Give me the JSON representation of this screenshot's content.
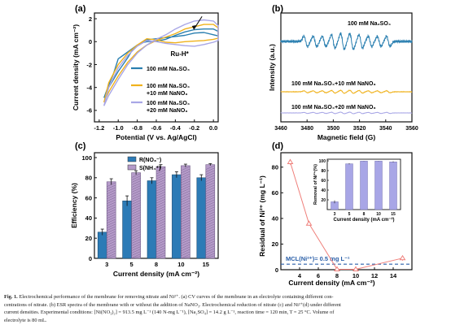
{
  "panels": {
    "a": {
      "letter": "(a)"
    },
    "b": {
      "letter": "(b)"
    },
    "c": {
      "letter": "(c)"
    },
    "d": {
      "letter": "(d)"
    }
  },
  "chart_data": [
    {
      "id": "a",
      "type": "line",
      "xlabel": "Potential (V vs. Ag/AgCl)",
      "ylabel": "Current density (mA cm⁻²)",
      "xlim": [
        -1.25,
        0.05
      ],
      "ylim": [
        -7,
        2.5
      ],
      "xticks": [
        -1.2,
        -1.0,
        -0.8,
        -0.6,
        -0.4,
        -0.2,
        0.0
      ],
      "xtick_labels": [
        "-1.2",
        "-1.0",
        "-0.8",
        "-0.6",
        "-0.4",
        "-0.2",
        "0.0"
      ],
      "yticks": [
        -6,
        -4,
        -2,
        0,
        2
      ],
      "ytick_labels": [
        "-6",
        "-4",
        "-2",
        "0",
        "2"
      ],
      "annotation": "Ru-H*",
      "legend": [
        {
          "label_lines": [
            "100 mM Na₂SO₄"
          ],
          "color": "#2a7fb0"
        },
        {
          "label_lines": [
            "100 mM Na₂SO₄",
            "+10 mM NaNO₃"
          ],
          "color": "#f0b21c"
        },
        {
          "label_lines": [
            "100 mM Na₂SO₄",
            "+20 mM NaNO₃"
          ],
          "color": "#a8a6e6"
        }
      ],
      "series": [
        {
          "name": "100 mM Na₂SO₄",
          "color": "#2a7fb0",
          "x": [
            -1.15,
            -1.1,
            -1.05,
            -1.0,
            -0.95,
            -0.9,
            -0.85,
            -0.8,
            -0.75,
            -0.7,
            -0.6,
            -0.5,
            -0.4,
            -0.3,
            -0.2,
            -0.1,
            0.0,
            0.05,
            0.05,
            0.0,
            -0.1,
            -0.2,
            -0.3,
            -0.4,
            -0.5,
            -0.6,
            -0.7,
            -0.8,
            -0.9,
            -1.0,
            -1.05,
            -1.1,
            -1.15
          ],
          "y": [
            -4.9,
            -4.0,
            -3.3,
            -2.6,
            -2.0,
            -1.4,
            -0.7,
            -0.3,
            -0.1,
            0.0,
            0.05,
            0.2,
            0.55,
            0.85,
            1.05,
            1.1,
            1.1,
            0.9,
            0.5,
            0.6,
            0.8,
            0.75,
            0.55,
            0.45,
            0.35,
            0.25,
            0.15,
            -0.3,
            -0.9,
            -1.5,
            -2.8,
            -3.8,
            -4.9
          ]
        },
        {
          "name": "100 mM Na₂SO₄ +10 mM NaNO₃",
          "color": "#f0b21c",
          "x": [
            -1.15,
            -1.1,
            -1.0,
            -0.9,
            -0.8,
            -0.7,
            -0.6,
            -0.5,
            -0.4,
            -0.3,
            -0.2,
            -0.1,
            0.0,
            0.05,
            0.05,
            0.0,
            -0.1,
            -0.2,
            -0.3,
            -0.4,
            -0.5,
            -0.6,
            -0.7,
            -0.8,
            -0.9,
            -1.0,
            -1.1,
            -1.15
          ],
          "y": [
            -5.3,
            -4.4,
            -3.0,
            -1.8,
            -0.9,
            -0.3,
            0.1,
            0.4,
            0.7,
            1.1,
            1.3,
            1.5,
            1.5,
            1.2,
            0.3,
            0.2,
            0.1,
            0.05,
            0.0,
            -0.1,
            -0.05,
            0.15,
            0.25,
            -0.3,
            -1.0,
            -2.0,
            -3.6,
            -5.3
          ]
        },
        {
          "name": "100 mM Na₂SO₄ +20 mM NaNO₃",
          "color": "#a8a6e6",
          "x": [
            -1.15,
            -1.1,
            -1.0,
            -0.9,
            -0.8,
            -0.7,
            -0.6,
            -0.5,
            -0.4,
            -0.3,
            -0.2,
            -0.1,
            0.0,
            0.05,
            0.05,
            0.0,
            -0.1,
            -0.2,
            -0.3,
            -0.4,
            -0.5,
            -0.6,
            -0.7,
            -0.8,
            -0.9,
            -1.0,
            -1.1,
            -1.15
          ],
          "y": [
            -5.6,
            -4.7,
            -3.3,
            -2.0,
            -1.0,
            -0.3,
            0.2,
            0.6,
            1.1,
            1.5,
            1.8,
            1.9,
            1.8,
            1.4,
            0.1,
            -0.05,
            -0.25,
            -0.4,
            -0.35,
            -0.25,
            -0.15,
            0.0,
            0.1,
            -0.4,
            -1.2,
            -2.3,
            -4.0,
            -5.6
          ]
        }
      ]
    },
    {
      "id": "b",
      "type": "line",
      "xlabel": "Magnetic field (G)",
      "ylabel": "Intensity (a.u.)",
      "xlim": [
        3460,
        3560
      ],
      "xticks": [
        3460,
        3480,
        3500,
        3520,
        3540,
        3560
      ],
      "xtick_labels": [
        "3460",
        "3480",
        "3500",
        "3520",
        "3540",
        "3560"
      ],
      "series": [
        {
          "name": "100 mM Na₂SO₄",
          "color": "#2a7fb0",
          "peak_centers": [
            3479,
            3486,
            3493,
            3500,
            3507,
            3514,
            3521,
            3528,
            3535,
            3542
          ],
          "amplitude": 1.0
        },
        {
          "name": "100 mM Na₂SO₄+10 mM NaNO₃",
          "color": "#f0b21c",
          "peak_centers": [
            3479,
            3486,
            3493,
            3500,
            3507,
            3514,
            3521,
            3528,
            3535,
            3542
          ],
          "amplitude": 0.18
        },
        {
          "name": "100 mM Na₂SO₄+20 mM NaNO₃",
          "color": "#a8a6e6",
          "peak_centers": [
            3479,
            3486,
            3493,
            3500,
            3507,
            3514,
            3521,
            3528,
            3535,
            3542
          ],
          "amplitude": 0.08
        }
      ]
    },
    {
      "id": "c",
      "type": "bar",
      "xlabel": "Current density (mA cm⁻²)",
      "ylabel": "Efficiency (%)",
      "categories": [
        "3",
        "5",
        "8",
        "10",
        "15"
      ],
      "ylim": [
        0,
        100
      ],
      "yticks": [
        0,
        20,
        40,
        60,
        80,
        100
      ],
      "ytick_labels": [
        "0",
        "20",
        "40",
        "60",
        "80",
        "100"
      ],
      "legend_labels": [
        "R(NO₃⁻)",
        "S(NH₄⁺)"
      ],
      "series": [
        {
          "name": "R(NO₃⁻)",
          "color": "#2c7bb6",
          "values": [
            26,
            57,
            77,
            83,
            80
          ],
          "errors": [
            3,
            5,
            3,
            3,
            3
          ]
        },
        {
          "name": "S(NH₄⁺)",
          "color": "#b59bc9",
          "values": [
            76,
            85,
            91,
            92,
            93
          ],
          "errors": [
            3,
            2,
            2,
            1.5,
            1
          ]
        }
      ]
    },
    {
      "id": "d",
      "type": "line",
      "xlabel": "Current density (mA cm⁻²)",
      "ylabel": "Residual of Ni²⁺ (mg L⁻¹)",
      "xlim": [
        2,
        16
      ],
      "ylim": [
        0,
        90
      ],
      "xticks": [
        4,
        6,
        8,
        10,
        12,
        14
      ],
      "xtick_labels": [
        "4",
        "6",
        "8",
        "10",
        "12",
        "14"
      ],
      "yticks": [
        0,
        20,
        40,
        60,
        80
      ],
      "ytick_labels": [
        "0",
        "20",
        "40",
        "60",
        "80"
      ],
      "series": [
        {
          "name": "Residual",
          "color": "#ef7f7a",
          "x": [
            3,
            5,
            8,
            10,
            15
          ],
          "y": [
            84,
            36,
            0.3,
            0.3,
            9
          ],
          "errors": [
            2,
            0,
            0,
            0,
            2
          ]
        }
      ],
      "mcl_label": "MCL(Ni²⁺)= 0.5 mg L⁻¹",
      "mcl_value": 0.5,
      "inset": {
        "type": "bar",
        "ylabel": "Removal of Ni²⁺(%)",
        "xlabel": "Current density (mA cm⁻²)",
        "categories": [
          "3",
          "5",
          "8",
          "10",
          "15"
        ],
        "values": [
          16,
          94,
          99.5,
          99.5,
          98
        ],
        "errors": [
          3,
          1,
          0.3,
          0.3,
          1
        ],
        "ylim": [
          0,
          100
        ],
        "yticks": [
          20,
          40,
          60,
          80,
          100
        ],
        "ytick_labels": [
          "20",
          "40",
          "60",
          "80",
          "100"
        ],
        "color": "#a8a6e6"
      }
    }
  ],
  "caption": {
    "fig_label": "Fig. 1.",
    "line1": "Electrochemical performance of the membrane for removing nitrate and Ni²⁺. (a) CV curves of the membrane in an electrolyte containing different con-",
    "line2": "centrations of nitrate. (b) ESR spectra of the membrane with or without the addition of NaNO₃. Electrochemical reduction of nitrate (c) and Ni²⁺(d) under different",
    "line3": "current densities. Experimental conditions: [Ni(NO₃)₂] = 913.5 mg L⁻¹ (140 N-mg L⁻¹), [Na₂SO₄] = 14.2 g L⁻¹, reaction time = 120 min, T = 25 °C. Volume of",
    "line4": "electrolyte is 80 mL."
  }
}
